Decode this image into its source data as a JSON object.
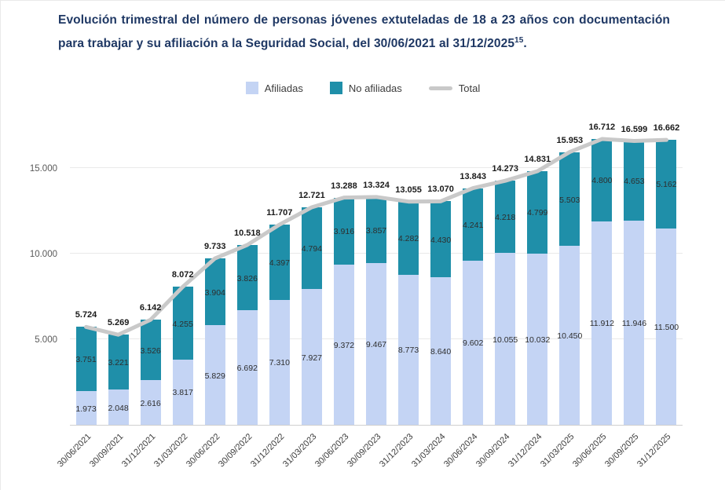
{
  "title": {
    "text": "Evolución trimestral del número de personas jóvenes extuteladas de 18 a 23 años con documentación para trabajar y su afiliación a la Seguridad Social, del 30/06/2021 al 31/12/2025",
    "footnote_sup": "15",
    "suffix": "."
  },
  "legend": {
    "afiliadas": "Afiliadas",
    "no_afiliadas": "No afiliadas",
    "total": "Total"
  },
  "colors": {
    "afiliadas": "#c4d4f4",
    "no_afiliadas": "#1f8fa9",
    "total_line": "#c9c9c9",
    "title": "#1f3864"
  },
  "chart_data": {
    "type": "bar",
    "stacked": true,
    "title": "Evolución trimestral del número de personas jóvenes extuteladas de 18 a 23 años con documentación para trabajar y su afiliación a la Seguridad Social, del 30/06/2021 al 31/12/2025",
    "categories": [
      "30/06/2021",
      "30/09/2021",
      "31/12/2021",
      "31/03/2022",
      "30/06/2022",
      "30/09/2022",
      "31/12/2022",
      "31/03/2023",
      "30/06/2023",
      "30/09/2023",
      "31/12/2023",
      "31/03/2024",
      "30/06/2024",
      "30/09/2024",
      "31/12/2024",
      "31/03/2025",
      "30/06/2025",
      "30/09/2025",
      "31/12/2025"
    ],
    "series": [
      {
        "name": "Afiliadas",
        "type": "bar",
        "values": [
          1973,
          2048,
          2616,
          3817,
          5829,
          6692,
          7310,
          7927,
          9372,
          9467,
          8773,
          8640,
          9602,
          10055,
          10032,
          10450,
          11912,
          11946,
          11500
        ]
      },
      {
        "name": "No afiliadas",
        "type": "bar",
        "values": [
          3751,
          3221,
          3526,
          4255,
          3904,
          3826,
          4397,
          4794,
          3916,
          3857,
          4282,
          4430,
          4241,
          4218,
          4799,
          5503,
          4800,
          4653,
          5162
        ]
      },
      {
        "name": "Total",
        "type": "line",
        "values": [
          5724,
          5269,
          6142,
          8072,
          9733,
          10518,
          11707,
          12721,
          13288,
          13324,
          13055,
          13070,
          13843,
          14273,
          14831,
          15953,
          16712,
          16599,
          16662
        ]
      }
    ],
    "y_ticks": [
      5000,
      10000,
      15000
    ],
    "y_tick_labels": [
      "5.000",
      "10.000",
      "15.000"
    ],
    "ylim": [
      0,
      18000
    ],
    "grid": true,
    "legend_position": "top",
    "data_labels": true,
    "number_format": "thousands separated by dots (es-ES)"
  }
}
